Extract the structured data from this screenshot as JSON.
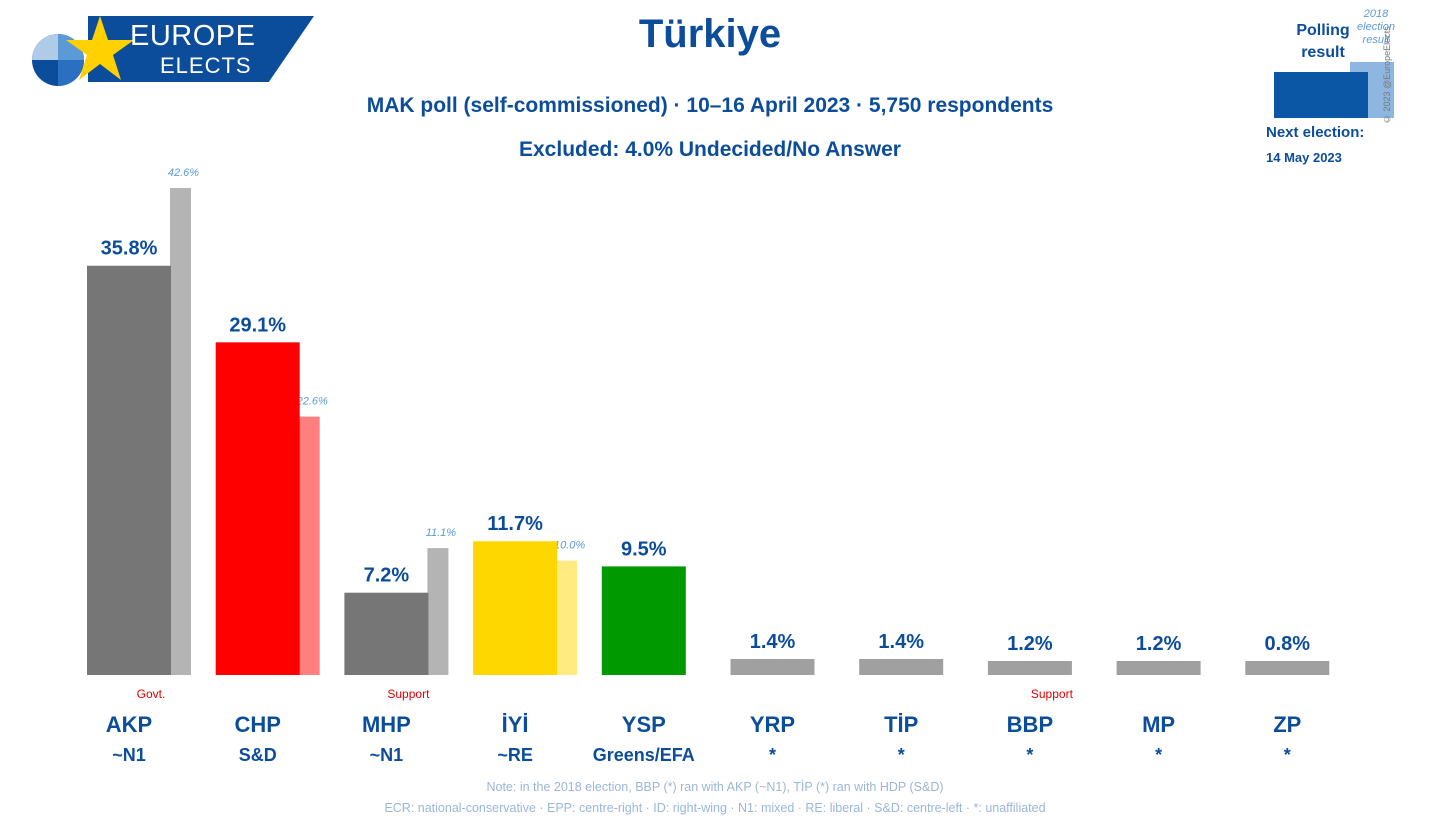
{
  "logo": {
    "line1": "EUROPE",
    "line2": "ELECTS"
  },
  "title": "Türkiye",
  "subtitle1": "MAK poll (self-commissioned) · 10–16 April 2023 · 5,750 respondents",
  "subtitle2": "Excluded: 4.0% Undecided/No Answer",
  "legend": {
    "polling": "Polling result",
    "election": "2018 election result",
    "copyright": "© 2023 @EuropeElects",
    "next_label": "Next election:",
    "next_date": "14 May 2023"
  },
  "notes": {
    "line1": "Note: in the 2018 election, BBP (*) ran with AKP (~N1), TİP (*) ran with HDP (S&D)",
    "line2": "ECR: national-conservative · EPP: centre-right · ID: right-wing · N1: mixed · RE: liberal · S&D: centre-left · *: unaffiliated"
  },
  "chart_data": {
    "type": "bar",
    "categories": [
      "AKP",
      "CHP",
      "MHP",
      "İYİ",
      "YSP",
      "YRP",
      "TİP",
      "BBP",
      "MP",
      "ZP"
    ],
    "groups": [
      "~N1",
      "S&D",
      "~N1",
      "~RE",
      "Greens/EFA",
      "*",
      "*",
      "*",
      "*",
      "*"
    ],
    "status": [
      "Govt.",
      "",
      "Support",
      "",
      "",
      "",
      "",
      "Support",
      "",
      ""
    ],
    "series": [
      {
        "name": "Polling result",
        "values": [
          35.8,
          29.1,
          7.2,
          11.7,
          9.5,
          1.4,
          1.4,
          1.2,
          1.2,
          0.8
        ],
        "labels": [
          "35.8%",
          "29.1%",
          "7.2%",
          "11.7%",
          "9.5%",
          "1.4%",
          "1.4%",
          "1.2%",
          "1.2%",
          "0.8%"
        ]
      },
      {
        "name": "2018 election result",
        "values": [
          42.6,
          22.6,
          11.1,
          10.0,
          null,
          null,
          null,
          null,
          null,
          null
        ],
        "labels": [
          "42.6%",
          "22.6%",
          "11.1%",
          "10.0%",
          "",
          "",
          "",
          "",
          "",
          ""
        ]
      }
    ],
    "colors": {
      "poll": [
        "#767676",
        "#ff0000",
        "#767676",
        "#ffd700",
        "#009900",
        "#a0a0a0",
        "#a0a0a0",
        "#a0a0a0",
        "#a0a0a0",
        "#a0a0a0"
      ],
      "election": [
        "#b4b4b4",
        "#ff7f7f",
        "#b4b4b4",
        "#ffeb80",
        "",
        "",
        "",
        "",
        "",
        ""
      ]
    },
    "ylim": [
      0,
      42.6
    ]
  }
}
